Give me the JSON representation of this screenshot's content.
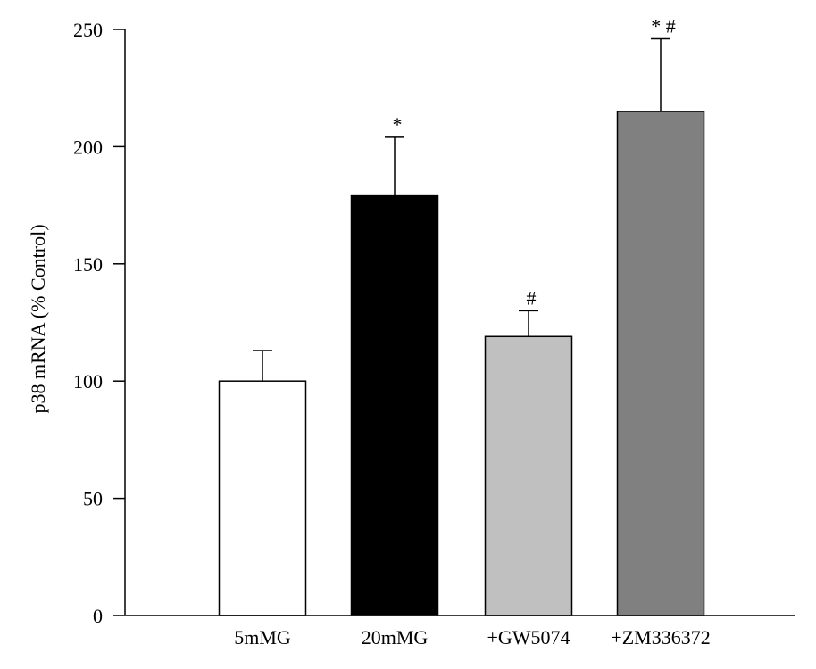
{
  "chart_data": {
    "type": "bar",
    "title": "",
    "xlabel": "",
    "ylabel": "p38 mRNA (% Control)",
    "ylim": [
      0,
      250
    ],
    "yticks": [
      "0",
      "50",
      "100",
      "150",
      "200",
      "250"
    ],
    "grid": false,
    "categories": [
      "5mMG",
      "20mMG",
      "+GW5074",
      "+ZM336372"
    ],
    "series": [
      {
        "values": [
          100,
          179,
          119,
          215
        ],
        "errors": [
          13,
          25,
          11,
          31
        ],
        "colors": [
          "#ffffff",
          "#000000",
          "#c0c0c0",
          "#808080"
        ],
        "annotations": [
          "",
          "*",
          "#",
          "* #"
        ]
      }
    ]
  }
}
